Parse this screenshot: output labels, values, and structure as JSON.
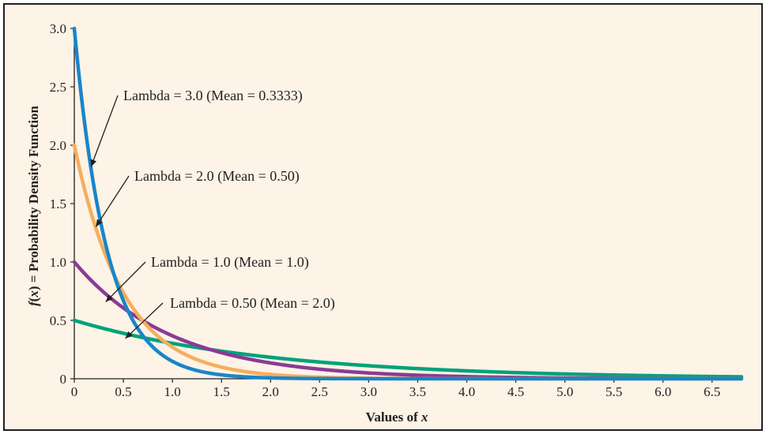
{
  "chart_data": {
    "type": "line",
    "title": "",
    "xlabel": {
      "text": "Values of ",
      "var": "x"
    },
    "ylabel": {
      "fn": "f",
      "open": "(",
      "var": "x",
      "rest": ") = Probability Density Function"
    },
    "xlim": [
      0,
      6.8
    ],
    "ylim": [
      0,
      3.0
    ],
    "x_ticks": [
      "0",
      "0.5",
      "1.0",
      "1.5",
      "2.0",
      "2.5",
      "3.0",
      "3.5",
      "4.0",
      "4.5",
      "5.0",
      "5.5",
      "6.0",
      "6.5"
    ],
    "y_ticks": [
      "0",
      "0.5",
      "1.0",
      "1.5",
      "2.0",
      "2.5",
      "3.0"
    ],
    "grid": false,
    "series": [
      {
        "lambda": 0.5,
        "color": "#00a27a",
        "annotation": "Lambda = 0.50 (Mean = 2.0)"
      },
      {
        "lambda": 1.0,
        "color": "#8b3a96",
        "annotation": "Lambda = 1.0 (Mean = 1.0)"
      },
      {
        "lambda": 2.0,
        "color": "#f6ae5c",
        "annotation": "Lambda = 2.0 (Mean = 0.50)"
      },
      {
        "lambda": 3.0,
        "color": "#1a85c8",
        "annotation": "Lambda = 3.0 (Mean = 0.3333)"
      }
    ]
  }
}
